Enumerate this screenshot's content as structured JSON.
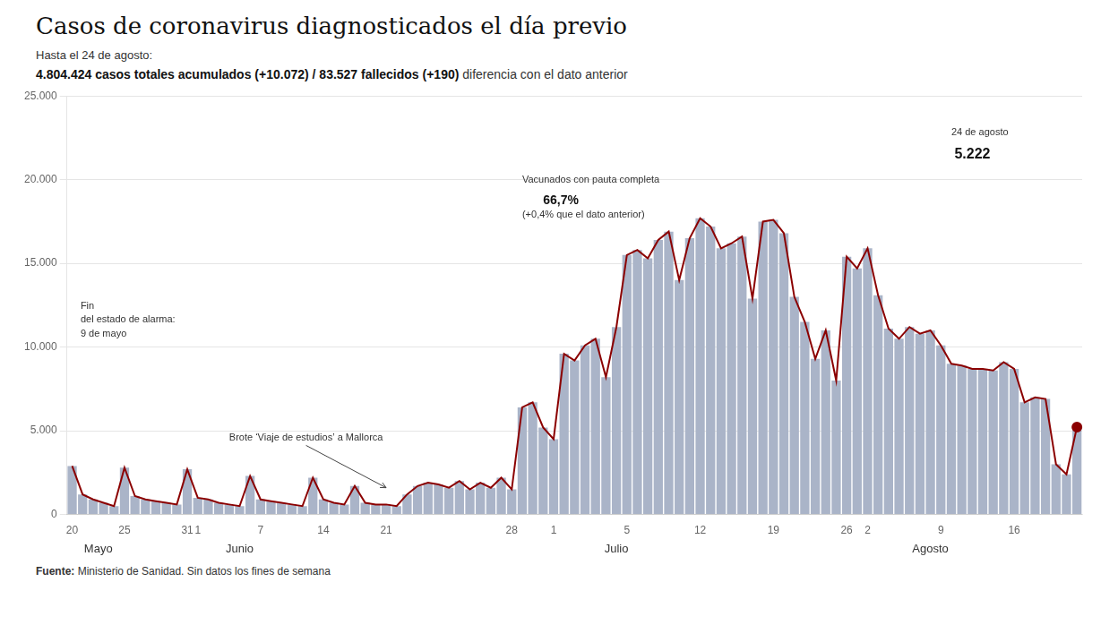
{
  "chart_data": {
    "type": "bar",
    "title": "Casos de coronavirus diagnosticados el día previo",
    "subtitle": [
      "Hasta el 24 de agosto:",
      "4.804.424 casos totales acumulados (+10.072) / 83.527 fallecidos (+190)",
      " diferencia con el dato anterior"
    ],
    "source": [
      "Fuente:",
      " Ministerio de Sanidad. Sin datos los fines de semana"
    ],
    "categories": [
      "20",
      null,
      null,
      null,
      null,
      "25",
      null,
      null,
      null,
      null,
      null,
      "31",
      "1",
      null,
      null,
      null,
      null,
      null,
      "7",
      null,
      null,
      null,
      null,
      null,
      "14",
      null,
      null,
      null,
      null,
      null,
      "21",
      null,
      null,
      null,
      null,
      null,
      null,
      null,
      null,
      null,
      null,
      null,
      "28",
      null,
      null,
      null,
      "1",
      null,
      null,
      null,
      null,
      null,
      null,
      "5",
      null,
      null,
      null,
      null,
      null,
      null,
      "12",
      null,
      null,
      null,
      null,
      null,
      null,
      "19",
      null,
      null,
      null,
      null,
      null,
      null,
      "26",
      null,
      "2",
      null,
      null,
      null,
      null,
      null,
      null,
      "9",
      null,
      null,
      null,
      null,
      null,
      null,
      "16",
      null,
      null,
      null,
      null,
      null,
      null
    ],
    "month_labels": [
      "Mayo",
      "Junio",
      "Julio",
      "Agosto"
    ],
    "series": [
      {
        "type": "bar",
        "color": "#aab4c8",
        "values": [
          2900,
          1200,
          900,
          700,
          500,
          2800,
          1100,
          900,
          800,
          700,
          600,
          2700,
          1000,
          900,
          700,
          600,
          500,
          2300,
          900,
          800,
          700,
          600,
          500,
          2200,
          900,
          700,
          600,
          1700,
          700,
          600,
          600,
          500,
          1200,
          1700,
          1900,
          1800,
          1600,
          2000,
          1500,
          1900,
          1600,
          2200,
          1500,
          6400,
          6700,
          5200,
          4500,
          9600,
          9200,
          10100,
          10500,
          8200,
          11200,
          15500,
          15800,
          15300,
          16400,
          16900,
          14000,
          16500,
          17700,
          17200,
          15900,
          16200,
          16600,
          12900,
          17500,
          17600,
          16800,
          13000,
          11500,
          9300,
          11000,
          8000,
          15400,
          14700,
          15900,
          13100,
          11100,
          10500,
          11200,
          10800,
          11000,
          10100,
          9000,
          8900,
          8700,
          8700,
          8600,
          9100,
          8700,
          6700,
          7000,
          6900,
          3000,
          2400,
          5222
        ]
      },
      {
        "type": "line",
        "color": "#8b0000",
        "values": [
          2900,
          1200,
          900,
          700,
          500,
          2800,
          1100,
          900,
          800,
          700,
          600,
          2700,
          1000,
          900,
          700,
          600,
          500,
          2300,
          900,
          800,
          700,
          600,
          500,
          2200,
          900,
          700,
          600,
          1700,
          700,
          600,
          600,
          500,
          1200,
          1700,
          1900,
          1800,
          1600,
          2000,
          1500,
          1900,
          1600,
          2200,
          1500,
          6400,
          6700,
          5200,
          4500,
          9600,
          9200,
          10100,
          10500,
          8200,
          11200,
          15500,
          15800,
          15300,
          16400,
          16900,
          14000,
          16500,
          17700,
          17200,
          15900,
          16200,
          16600,
          12900,
          17500,
          17600,
          16800,
          13000,
          11500,
          9300,
          11000,
          8000,
          15400,
          14700,
          15900,
          13100,
          11100,
          10500,
          11200,
          10800,
          11000,
          10100,
          9000,
          8900,
          8700,
          8700,
          8600,
          9100,
          8700,
          6700,
          7000,
          6900,
          3000,
          2400,
          5222
        ]
      }
    ],
    "ylim": [
      0,
      25000
    ],
    "yticks": [
      0,
      {
        "value": 5000,
        "label": "5.000"
      },
      {
        "value": 10000,
        "label": "10.000"
      },
      {
        "value": 15000,
        "label": "15.000"
      },
      {
        "value": 20000,
        "label": "20.000"
      },
      {
        "value": 25000,
        "label": "25.000"
      }
    ],
    "grid": true,
    "annotations": [
      "Fin\ndel estado de alarma:\n9 de mayo",
      "Brote ‘Viaje de estudios’ a Mallorca",
      "Vacunados con pauta completa",
      "66,7%",
      "(+0,4% que el dato anterior)",
      "24 de agosto",
      "5.222"
    ]
  }
}
